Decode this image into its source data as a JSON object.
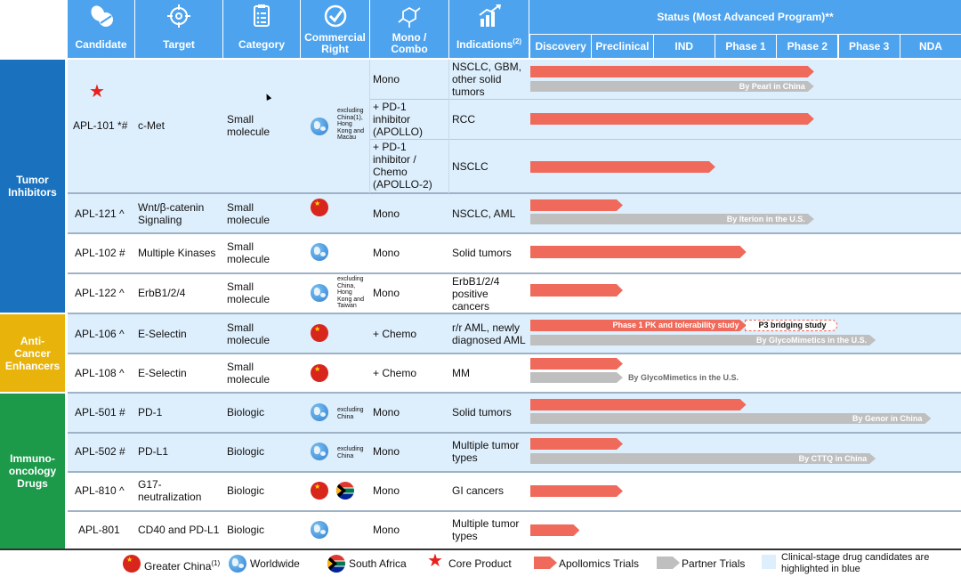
{
  "colors": {
    "header_blue": "#4da3ee",
    "row_highlight": "#ddeefc",
    "apollomics_bar": "#ef6a5a",
    "partner_bar": "#bfbfbf",
    "tumor_group": "#1a72bf",
    "anticancer_group": "#e8b40c",
    "immuno_group": "#1c9a4a",
    "core_star": "#e8211d"
  },
  "header": {
    "candidate": "Candidate",
    "target": "Target",
    "category": "Category",
    "commercial_right": "Commercial Right",
    "mono_combo": "Mono / Combo",
    "indications": "Indications",
    "indications_sup": "(2)",
    "status_title": "Status (Most Advanced Program)**",
    "stages": [
      "Discovery",
      "Preclinical",
      "IND",
      "Phase 1",
      "Phase 2",
      "Phase 3",
      "NDA"
    ],
    "icons": [
      "pills-icon",
      "target-crosshair-icon",
      "clipboard-list-icon",
      "checkmark-circle-icon",
      "molecule-icon",
      "bar-chart-growth-icon"
    ]
  },
  "groups": {
    "tumor": "Tumor Inhibitors",
    "anticancer": "Anti-Cancer Enhancers",
    "immuno": "Immuno-oncology Drugs"
  },
  "rows": {
    "apl101": {
      "candidate": "APL-101 *#",
      "target": "c-Met",
      "category": "Small molecule",
      "rights_note": "excluding China(1), Hong Kong and Macau",
      "sub": [
        {
          "combo": "Mono",
          "indication": "NSCLC, GBM, other solid tumors",
          "apollomics_stage": 4.6,
          "partner_stage": 4.6,
          "partner_label": "By Pearl in China"
        },
        {
          "combo": "+ PD-1 inhibitor (APOLLO)",
          "indication": "RCC",
          "apollomics_stage": 4.6
        },
        {
          "combo": "+ PD-1 inhibitor / Chemo (APOLLO-2)",
          "indication": "NSCLC",
          "apollomics_stage": 3.0
        }
      ]
    },
    "apl121": {
      "candidate": "APL-121 ^",
      "target": "Wnt/β-catenin Signaling",
      "category": "Small molecule",
      "combo": "Mono",
      "indication": "NSCLC, AML",
      "apollomics_stage": 1.5,
      "partner_stage": 4.6,
      "partner_label": "By Iterion in the U.S."
    },
    "apl102": {
      "candidate": "APL-102 #",
      "target": "Multiple Kinases",
      "category": "Small molecule",
      "combo": "Mono",
      "indication": "Solid tumors",
      "apollomics_stage": 3.5
    },
    "apl122": {
      "candidate": "APL-122 ^",
      "target": "ErbB1/2/4",
      "category": "Small molecule",
      "rights_note": "excluding China, Hong Kong and Taiwan",
      "combo": "Mono",
      "indication": "ErbB1/2/4 positive cancers",
      "apollomics_stage": 1.5
    },
    "apl106": {
      "candidate": "APL-106 ^",
      "target": "E-Selectin",
      "category": "Small molecule",
      "combo": "+ Chemo",
      "indication": "r/r AML, newly diagnosed AML",
      "apollomics_stage": 3.5,
      "apollomics_label": "Phase 1 PK and tolerability study",
      "bridging_label": "P3 bridging study",
      "partner_stage": 5.6,
      "partner_label": "By GlycoMimetics in the U.S."
    },
    "apl108": {
      "candidate": "APL-108 ^",
      "target": "E-Selectin",
      "category": "Small molecule",
      "combo": "+ Chemo",
      "indication": "MM",
      "apollomics_stage": 1.5,
      "partner_stage": 1.5,
      "partner_label": "By GlycoMimetics in the U.S."
    },
    "apl501": {
      "candidate": "APL-501 #",
      "target": "PD-1",
      "category": "Biologic",
      "rights_note": "excluding China",
      "combo": "Mono",
      "indication": "Solid tumors",
      "apollomics_stage": 3.5,
      "partner_stage": 6.5,
      "partner_label": "By Genor in China"
    },
    "apl502": {
      "candidate": "APL-502 #",
      "target": "PD-L1",
      "category": "Biologic",
      "rights_note": "excluding China",
      "combo": "Mono",
      "indication": "Multiple tumor types",
      "apollomics_stage": 1.5,
      "partner_stage": 5.6,
      "partner_label": "By CTTQ in China"
    },
    "apl810": {
      "candidate": "APL-810 ^",
      "target": "G17-neutralization",
      "category": "Biologic",
      "combo": "Mono",
      "indication": "GI cancers",
      "apollomics_stage": 1.5
    },
    "apl801": {
      "candidate": "APL-801",
      "target": "CD40 and PD-L1",
      "category": "Biologic",
      "combo": "Mono",
      "indication": "Multiple tumor types",
      "apollomics_stage": 0.8
    }
  },
  "legend": {
    "greater_china": "Greater China",
    "greater_china_sup": "(1)",
    "worldwide": "Worldwide",
    "south_africa": "South Africa",
    "core_product": "Core Product",
    "apollomics_trials": "Apollomics Trials",
    "partner_trials": "Partner Trials",
    "highlight_note": "Clinical-stage drug candidates are highlighted in blue"
  }
}
